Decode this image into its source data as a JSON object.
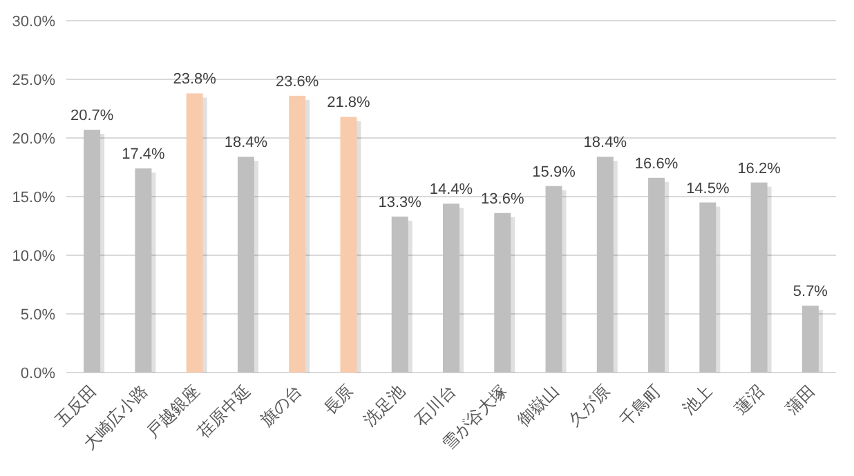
{
  "chart_data": {
    "type": "bar",
    "categories": [
      "五反田",
      "大崎広小路",
      "戸越銀座",
      "荏原中延",
      "旗の台",
      "長原",
      "洗足池",
      "石川台",
      "雪が谷大塚",
      "御嶽山",
      "久が原",
      "千鳥町",
      "池上",
      "蓮沼",
      "蒲田"
    ],
    "values": [
      20.7,
      17.4,
      23.8,
      18.4,
      23.6,
      21.8,
      13.3,
      14.4,
      13.6,
      15.9,
      18.4,
      16.6,
      14.5,
      16.2,
      5.7
    ],
    "value_labels": [
      "20.7%",
      "17.4%",
      "23.8%",
      "18.4%",
      "23.6%",
      "21.8%",
      "13.3%",
      "14.4%",
      "13.6%",
      "15.9%",
      "18.4%",
      "16.6%",
      "14.5%",
      "16.2%",
      "5.7%"
    ],
    "colors": [
      "#bfbfbf",
      "#bfbfbf",
      "#f8cbad",
      "#bfbfbf",
      "#f8cbad",
      "#f8cbad",
      "#bfbfbf",
      "#bfbfbf",
      "#bfbfbf",
      "#bfbfbf",
      "#bfbfbf",
      "#bfbfbf",
      "#bfbfbf",
      "#bfbfbf",
      "#bfbfbf"
    ],
    "ylim": [
      0,
      30
    ],
    "yticks": [
      {
        "value": 0,
        "label": "0.0%"
      },
      {
        "value": 5,
        "label": "5.0%"
      },
      {
        "value": 10,
        "label": "10.0%"
      },
      {
        "value": 15,
        "label": "15.0%"
      },
      {
        "value": 20,
        "label": "20.0%"
      },
      {
        "value": 25,
        "label": "25.0%"
      },
      {
        "value": 30,
        "label": "30.0%"
      }
    ],
    "grid": "y"
  }
}
